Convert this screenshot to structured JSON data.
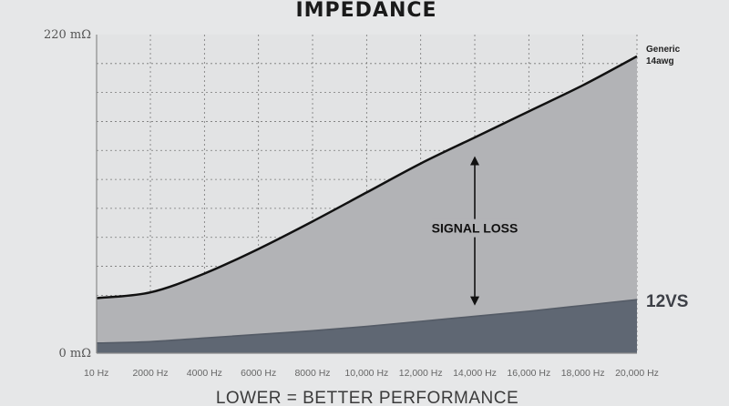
{
  "chart_data": {
    "type": "area",
    "title": "IMPEDANCE",
    "xlabel": "LOWER = BETTER PERFORMANCE",
    "ylabel": "",
    "x": [
      10,
      2000,
      4000,
      6000,
      8000,
      10000,
      12000,
      14000,
      16000,
      18000,
      20000
    ],
    "x_tick_labels": [
      "10 Hz",
      "2000 Hz",
      "4000 Hz",
      "6000 Hz",
      "8000 Hz",
      "10,000 Hz",
      "12,000 Hz",
      "14,000 Hz",
      "16,000 Hz",
      "18,000 Hz",
      "20,000 Hz"
    ],
    "xlim": [
      10,
      20000
    ],
    "ylim": [
      0,
      220
    ],
    "y_tick_labels": [
      "220 mΩ",
      "0 mΩ"
    ],
    "y_ticks": [
      220,
      0
    ],
    "grid": true,
    "series": [
      {
        "name": "Generic 14awg",
        "label_lines": [
          "Generic",
          "14awg"
        ],
        "color": "#111111",
        "fill": "#b2b3b6",
        "values": [
          38,
          42,
          55,
          72,
          91,
          111,
          131,
          149,
          167,
          185,
          205
        ]
      },
      {
        "name": "12VS",
        "label_lines": [
          "12VS"
        ],
        "color": "#545b66",
        "fill": "#5f6773",
        "values": [
          7,
          8,
          10.5,
          13,
          15.5,
          18.5,
          22,
          25.5,
          29,
          33,
          37
        ]
      }
    ],
    "annotations": [
      {
        "text": "SIGNAL LOSS",
        "x": 14000,
        "y_from": 31,
        "y_to": 143,
        "type": "double-arrow"
      }
    ],
    "colors": {
      "background": "#e6e7e8",
      "plot_background": "#e2e3e4",
      "grid": "#777777",
      "axis": "#8a8a8a"
    }
  }
}
